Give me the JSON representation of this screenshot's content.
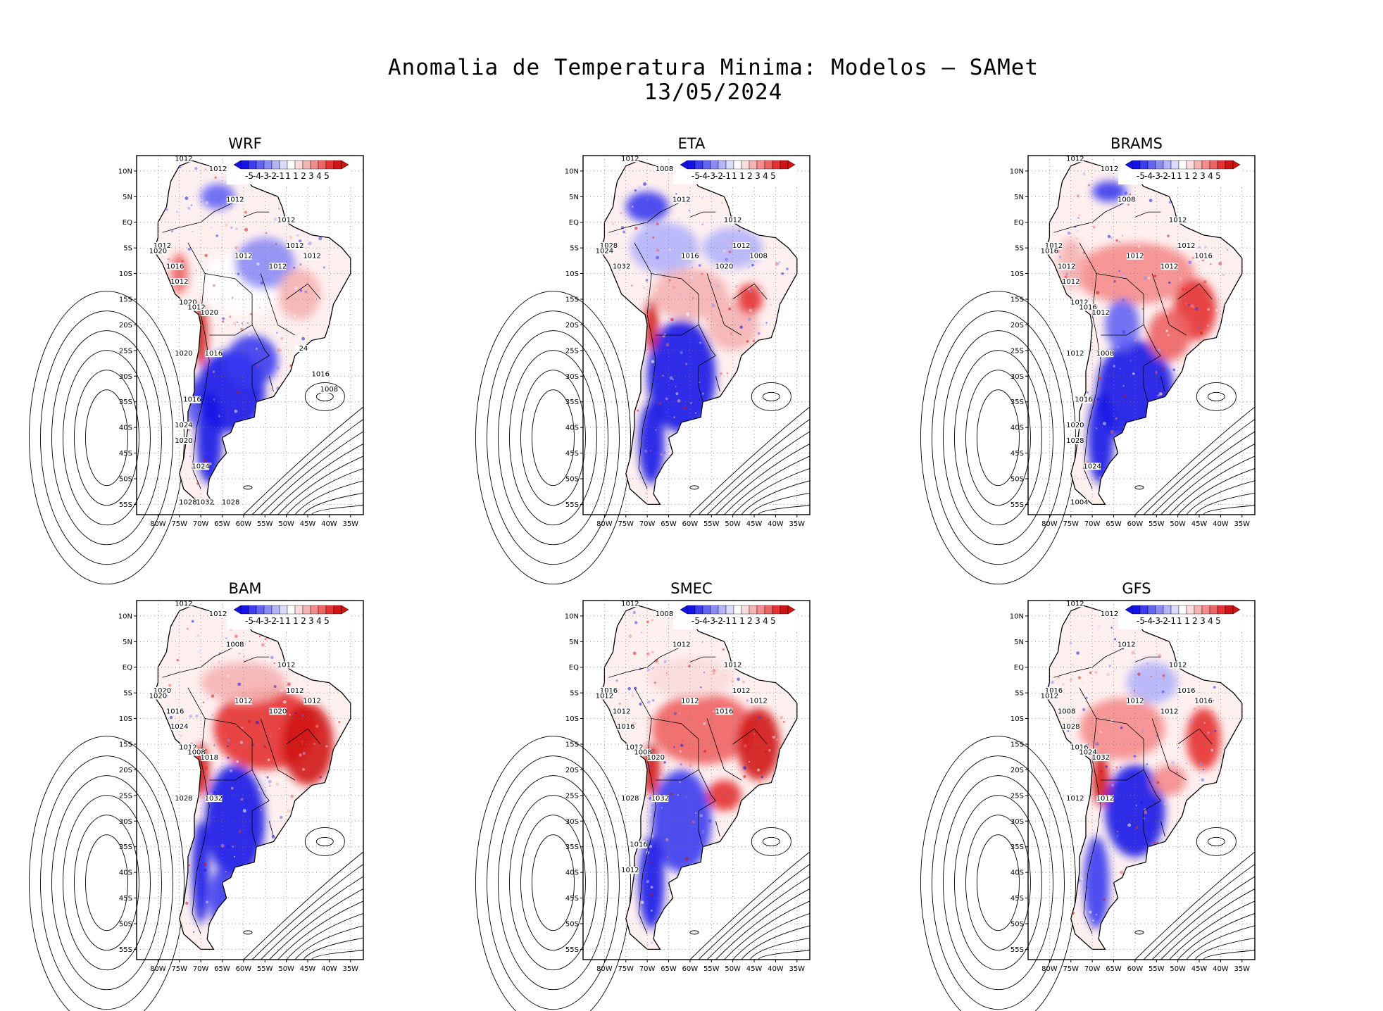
{
  "title": {
    "line1": "Anomalia de Temperatura Minima: Modelos — SAMet",
    "line2": "13/05/2024"
  },
  "axes": {
    "lat_labels": [
      "10N",
      "5N",
      "EQ",
      "5S",
      "10S",
      "15S",
      "20S",
      "25S",
      "30S",
      "35S",
      "40S",
      "45S",
      "50S",
      "55S"
    ],
    "lon_labels": [
      "80W",
      "75W",
      "70W",
      "65W",
      "60W",
      "55W",
      "50W",
      "45W",
      "40W",
      "35W"
    ]
  },
  "colorbar": {
    "labels": [
      "-5",
      "-4",
      "-3",
      "-2",
      "-1",
      "1",
      "1",
      "2",
      "3",
      "4",
      "5"
    ],
    "colors": [
      "#1414e6",
      "#3b3bf0",
      "#6464f5",
      "#8c8cf5",
      "#b4b4fa",
      "#dcdcfc",
      "#ffffff",
      "#fadcdc",
      "#f5b4b4",
      "#f58c8c",
      "#f06464",
      "#e63232",
      "#d21414"
    ]
  },
  "colors": {
    "cold": "#1a1aee",
    "warm": "#ee2020",
    "coast": "#000000",
    "iso": "#000000"
  },
  "panels": [
    {
      "name": "WRF",
      "isobar_labels": [
        "1012",
        "1012",
        "1012",
        "1012",
        "1012",
        "1012",
        "1012",
        "1012",
        "1012",
        "1020",
        "1016",
        "1012",
        "1020",
        "1012",
        "1020",
        "1020",
        "1016",
        "1016",
        "1024",
        "1020",
        "1024",
        "1028",
        "1032",
        "1028",
        "24",
        "1016",
        "1008"
      ]
    },
    {
      "name": "ETA",
      "isobar_labels": [
        "1012",
        "1008",
        "1012",
        "1012",
        "1012",
        "1008",
        "1016",
        "1020",
        "1028",
        "1024",
        "1032"
      ]
    },
    {
      "name": "BRAMS",
      "isobar_labels": [
        "1012",
        "1012",
        "1008",
        "1012",
        "1012",
        "1016",
        "1012",
        "1012",
        "1012",
        "1016",
        "1012",
        "1012",
        "1012",
        "1016",
        "1012",
        "1012",
        "1008",
        "1016",
        "1020",
        "1028",
        "1024",
        "1004"
      ]
    },
    {
      "name": "BAM",
      "isobar_labels": [
        "1012",
        "1012",
        "1008",
        "1012",
        "1012",
        "1012",
        "1012",
        "1020",
        "1020",
        "1020",
        "1016",
        "1024",
        "1012",
        "1008",
        "1018",
        "1028",
        "1032"
      ]
    },
    {
      "name": "SMEC",
      "isobar_labels": [
        "1012",
        "1008",
        "1012",
        "1012",
        "1012",
        "1012",
        "1012",
        "1016",
        "1016",
        "1012",
        "1012",
        "1016",
        "1012",
        "1008",
        "1020",
        "1028",
        "1032",
        "1016",
        "1012"
      ]
    },
    {
      "name": "GFS",
      "isobar_labels": [
        "1012",
        "1012",
        "1012",
        "1012",
        "1016",
        "1016",
        "1012",
        "1012",
        "1016",
        "1012",
        "1008",
        "1028",
        "1016",
        "1024",
        "1032",
        "1012",
        "1012"
      ]
    }
  ]
}
